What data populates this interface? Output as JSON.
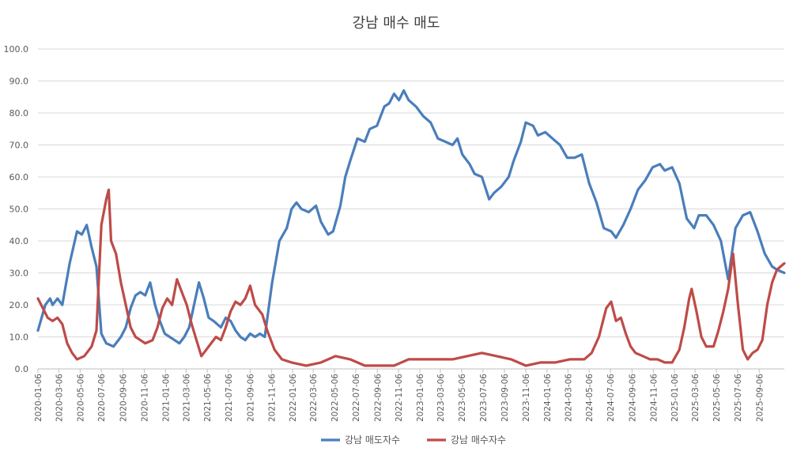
{
  "chart_data": {
    "type": "line",
    "title": "강남 매수 매도",
    "ylim": [
      0,
      100
    ],
    "yticks": [
      "0.0",
      "10.0",
      "20.0",
      "30.0",
      "40.0",
      "50.0",
      "60.0",
      "70.0",
      "80.0",
      "90.0",
      "100.0"
    ],
    "xticks": [
      "2020-01-06",
      "2020-03-06",
      "2020-05-06",
      "2020-07-06",
      "2020-09-06",
      "2020-11-06",
      "2021-01-06",
      "2021-03-06",
      "2021-05-06",
      "2021-07-06",
      "2021-09-06",
      "2021-11-06",
      "2022-01-06",
      "2022-03-06",
      "2022-05-06",
      "2022-07-06",
      "2022-09-06",
      "2022-11-06",
      "2023-01-06",
      "2023-03-06",
      "2023-05-06",
      "2023-07-06",
      "2023-09-06",
      "2023-11-06",
      "2024-01-06",
      "2024-03-06",
      "2024-05-06",
      "2024-07-06",
      "2024-09-06",
      "2024-11-06",
      "2025-01-06",
      "2025-03-06",
      "2025-05-06",
      "2025-07-06",
      "2025-09-06"
    ],
    "x_start": "2020-01-06",
    "x_end": "2025-11-17",
    "grid": true,
    "legend_position": "bottom",
    "series": [
      {
        "name": "강남 매도자수",
        "color": "#4a7ebb",
        "points": [
          [
            "2020-01-06",
            12
          ],
          [
            "2020-01-27",
            20
          ],
          [
            "2020-02-10",
            22
          ],
          [
            "2020-02-17",
            20
          ],
          [
            "2020-03-02",
            22
          ],
          [
            "2020-03-16",
            20
          ],
          [
            "2020-04-06",
            33
          ],
          [
            "2020-04-27",
            43
          ],
          [
            "2020-05-11",
            42
          ],
          [
            "2020-05-25",
            45
          ],
          [
            "2020-06-08",
            38
          ],
          [
            "2020-06-22",
            32
          ],
          [
            "2020-07-06",
            11
          ],
          [
            "2020-07-20",
            8
          ],
          [
            "2020-08-10",
            7
          ],
          [
            "2020-08-31",
            10
          ],
          [
            "2020-09-14",
            13
          ],
          [
            "2020-09-28",
            19
          ],
          [
            "2020-10-12",
            23
          ],
          [
            "2020-10-26",
            24
          ],
          [
            "2020-11-09",
            23
          ],
          [
            "2020-11-23",
            27
          ],
          [
            "2020-12-07",
            20
          ],
          [
            "2020-12-21",
            15
          ],
          [
            "2021-01-04",
            11
          ],
          [
            "2021-01-18",
            10
          ],
          [
            "2021-02-01",
            9
          ],
          [
            "2021-02-15",
            8
          ],
          [
            "2021-03-01",
            10
          ],
          [
            "2021-03-15",
            13
          ],
          [
            "2021-03-29",
            20
          ],
          [
            "2021-04-12",
            27
          ],
          [
            "2021-04-26",
            22
          ],
          [
            "2021-05-10",
            16
          ],
          [
            "2021-05-24",
            15
          ],
          [
            "2021-06-14",
            13
          ],
          [
            "2021-06-28",
            16
          ],
          [
            "2021-07-12",
            15
          ],
          [
            "2021-07-26",
            12
          ],
          [
            "2021-08-09",
            10
          ],
          [
            "2021-08-23",
            9
          ],
          [
            "2021-09-06",
            11
          ],
          [
            "2021-09-20",
            10
          ],
          [
            "2021-10-04",
            11
          ],
          [
            "2021-10-18",
            10
          ],
          [
            "2021-11-08",
            27
          ],
          [
            "2021-11-29",
            40
          ],
          [
            "2021-12-20",
            44
          ],
          [
            "2022-01-03",
            50
          ],
          [
            "2022-01-17",
            52
          ],
          [
            "2022-01-31",
            50
          ],
          [
            "2022-02-21",
            49
          ],
          [
            "2022-03-14",
            51
          ],
          [
            "2022-03-28",
            46
          ],
          [
            "2022-04-18",
            42
          ],
          [
            "2022-05-02",
            43
          ],
          [
            "2022-05-23",
            51
          ],
          [
            "2022-06-06",
            60
          ],
          [
            "2022-06-20",
            65
          ],
          [
            "2022-07-11",
            72
          ],
          [
            "2022-08-01",
            71
          ],
          [
            "2022-08-15",
            75
          ],
          [
            "2022-09-05",
            76
          ],
          [
            "2022-09-26",
            82
          ],
          [
            "2022-10-10",
            83
          ],
          [
            "2022-10-24",
            86
          ],
          [
            "2022-11-07",
            84
          ],
          [
            "2022-11-21",
            87
          ],
          [
            "2022-12-05",
            84
          ],
          [
            "2022-12-26",
            82
          ],
          [
            "2023-01-16",
            79
          ],
          [
            "2023-02-06",
            77
          ],
          [
            "2023-02-27",
            72
          ],
          [
            "2023-03-20",
            71
          ],
          [
            "2023-04-10",
            70
          ],
          [
            "2023-04-24",
            72
          ],
          [
            "2023-05-08",
            67
          ],
          [
            "2023-05-29",
            64
          ],
          [
            "2023-06-12",
            61
          ],
          [
            "2023-07-03",
            60
          ],
          [
            "2023-07-24",
            53
          ],
          [
            "2023-08-07",
            55
          ],
          [
            "2023-08-28",
            57
          ],
          [
            "2023-09-18",
            60
          ],
          [
            "2023-10-02",
            65
          ],
          [
            "2023-10-23",
            71
          ],
          [
            "2023-11-06",
            77
          ],
          [
            "2023-11-27",
            76
          ],
          [
            "2023-12-11",
            73
          ],
          [
            "2024-01-01",
            74
          ],
          [
            "2024-01-22",
            72
          ],
          [
            "2024-02-12",
            70
          ],
          [
            "2024-03-04",
            66
          ],
          [
            "2024-03-25",
            66
          ],
          [
            "2024-04-15",
            67
          ],
          [
            "2024-05-06",
            58
          ],
          [
            "2024-05-27",
            52
          ],
          [
            "2024-06-17",
            44
          ],
          [
            "2024-07-08",
            43
          ],
          [
            "2024-07-22",
            41
          ],
          [
            "2024-08-12",
            45
          ],
          [
            "2024-09-02",
            50
          ],
          [
            "2024-09-23",
            56
          ],
          [
            "2024-10-14",
            59
          ],
          [
            "2024-11-04",
            63
          ],
          [
            "2024-11-25",
            64
          ],
          [
            "2024-12-09",
            62
          ],
          [
            "2024-12-30",
            63
          ],
          [
            "2025-01-20",
            58
          ],
          [
            "2025-02-10",
            47
          ],
          [
            "2025-03-03",
            44
          ],
          [
            "2025-03-17",
            48
          ],
          [
            "2025-04-07",
            48
          ],
          [
            "2025-04-28",
            45
          ],
          [
            "2025-05-19",
            40
          ],
          [
            "2025-06-09",
            28
          ],
          [
            "2025-06-30",
            44
          ],
          [
            "2025-07-21",
            48
          ],
          [
            "2025-08-11",
            49
          ],
          [
            "2025-09-01",
            43
          ],
          [
            "2025-09-22",
            36
          ],
          [
            "2025-10-13",
            32
          ],
          [
            "2025-10-27",
            31
          ],
          [
            "2025-11-17",
            30
          ]
        ]
      },
      {
        "name": "강남 매수자수",
        "color": "#be4b48",
        "points": [
          [
            "2020-01-06",
            22
          ],
          [
            "2020-01-20",
            19
          ],
          [
            "2020-02-03",
            16
          ],
          [
            "2020-02-17",
            15
          ],
          [
            "2020-03-02",
            16
          ],
          [
            "2020-03-16",
            14
          ],
          [
            "2020-03-30",
            8
          ],
          [
            "2020-04-13",
            5
          ],
          [
            "2020-04-27",
            3
          ],
          [
            "2020-05-18",
            4
          ],
          [
            "2020-06-08",
            7
          ],
          [
            "2020-06-22",
            12
          ],
          [
            "2020-07-06",
            45
          ],
          [
            "2020-07-20",
            53
          ],
          [
            "2020-07-27",
            56
          ],
          [
            "2020-08-03",
            40
          ],
          [
            "2020-08-17",
            36
          ],
          [
            "2020-08-31",
            27
          ],
          [
            "2020-09-14",
            20
          ],
          [
            "2020-09-28",
            13
          ],
          [
            "2020-10-12",
            10
          ],
          [
            "2020-10-26",
            9
          ],
          [
            "2020-11-09",
            8
          ],
          [
            "2020-11-30",
            9
          ],
          [
            "2020-12-14",
            13
          ],
          [
            "2020-12-28",
            19
          ],
          [
            "2021-01-11",
            22
          ],
          [
            "2021-01-25",
            20
          ],
          [
            "2021-02-08",
            28
          ],
          [
            "2021-02-22",
            24
          ],
          [
            "2021-03-08",
            20
          ],
          [
            "2021-03-22",
            14
          ],
          [
            "2021-04-05",
            9
          ],
          [
            "2021-04-19",
            4
          ],
          [
            "2021-05-03",
            6
          ],
          [
            "2021-05-17",
            8
          ],
          [
            "2021-05-31",
            10
          ],
          [
            "2021-06-14",
            9
          ],
          [
            "2021-06-28",
            13
          ],
          [
            "2021-07-12",
            18
          ],
          [
            "2021-07-26",
            21
          ],
          [
            "2021-08-09",
            20
          ],
          [
            "2021-08-23",
            22
          ],
          [
            "2021-09-06",
            26
          ],
          [
            "2021-09-20",
            20
          ],
          [
            "2021-10-11",
            17
          ],
          [
            "2021-10-25",
            12
          ],
          [
            "2021-11-15",
            6
          ],
          [
            "2021-12-06",
            3
          ],
          [
            "2022-01-03",
            2
          ],
          [
            "2022-02-14",
            1
          ],
          [
            "2022-03-28",
            2
          ],
          [
            "2022-05-09",
            4
          ],
          [
            "2022-06-20",
            3
          ],
          [
            "2022-08-01",
            1
          ],
          [
            "2022-09-12",
            1
          ],
          [
            "2022-10-24",
            1
          ],
          [
            "2022-12-05",
            3
          ],
          [
            "2023-01-16",
            3
          ],
          [
            "2023-02-27",
            3
          ],
          [
            "2023-04-10",
            3
          ],
          [
            "2023-05-22",
            4
          ],
          [
            "2023-07-03",
            5
          ],
          [
            "2023-08-14",
            4
          ],
          [
            "2023-09-25",
            3
          ],
          [
            "2023-11-06",
            1
          ],
          [
            "2023-12-18",
            2
          ],
          [
            "2024-01-29",
            2
          ],
          [
            "2024-03-11",
            3
          ],
          [
            "2024-04-22",
            3
          ],
          [
            "2024-05-13",
            5
          ],
          [
            "2024-06-03",
            10
          ],
          [
            "2024-06-24",
            19
          ],
          [
            "2024-07-08",
            21
          ],
          [
            "2024-07-22",
            15
          ],
          [
            "2024-08-05",
            16
          ],
          [
            "2024-08-19",
            11
          ],
          [
            "2024-09-02",
            7
          ],
          [
            "2024-09-16",
            5
          ],
          [
            "2024-10-07",
            4
          ],
          [
            "2024-10-28",
            3
          ],
          [
            "2024-11-18",
            3
          ],
          [
            "2024-12-09",
            2
          ],
          [
            "2024-12-30",
            2
          ],
          [
            "2025-01-20",
            6
          ],
          [
            "2025-02-03",
            13
          ],
          [
            "2025-02-17",
            22
          ],
          [
            "2025-02-24",
            25
          ],
          [
            "2025-03-10",
            18
          ],
          [
            "2025-03-24",
            10
          ],
          [
            "2025-04-07",
            7
          ],
          [
            "2025-04-28",
            7
          ],
          [
            "2025-05-12",
            12
          ],
          [
            "2025-05-26",
            18
          ],
          [
            "2025-06-09",
            25
          ],
          [
            "2025-06-23",
            36
          ],
          [
            "2025-07-07",
            20
          ],
          [
            "2025-07-21",
            6
          ],
          [
            "2025-08-04",
            3
          ],
          [
            "2025-08-18",
            5
          ],
          [
            "2025-09-01",
            6
          ],
          [
            "2025-09-15",
            9
          ],
          [
            "2025-09-29",
            20
          ],
          [
            "2025-10-13",
            27
          ],
          [
            "2025-10-27",
            31
          ],
          [
            "2025-11-17",
            33
          ]
        ]
      }
    ]
  }
}
